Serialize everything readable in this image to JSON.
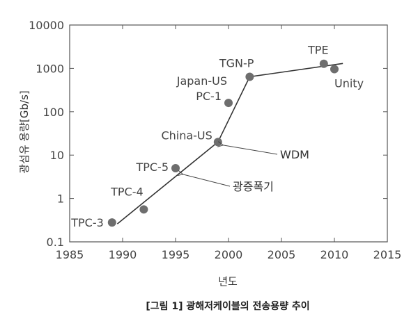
{
  "chart_data": {
    "type": "scatter",
    "caption": "[그림 1] 광해저케이블의 전송용량 추이",
    "xlabel": "년도",
    "ylabel": "광섬유 용량[Gb/s]",
    "xlim": [
      1985,
      2015
    ],
    "ylim": [
      0.1,
      10000
    ],
    "yscale": "log",
    "grid": false,
    "x_ticks": [
      1985,
      1990,
      1995,
      2000,
      2005,
      2010,
      2015
    ],
    "y_ticks": [
      0.1,
      1,
      10,
      100,
      1000,
      10000
    ],
    "y_tick_labels": [
      "0.1",
      "1",
      "10",
      "100",
      "1000",
      "10000"
    ],
    "points": [
      {
        "label": "TPC-3",
        "x": 1989,
        "y": 0.28
      },
      {
        "label": "TPC-4",
        "x": 1992,
        "y": 0.56
      },
      {
        "label": "TPC-5",
        "x": 1995,
        "y": 5
      },
      {
        "label": "China-US",
        "x": 1999,
        "y": 20
      },
      {
        "label": "Japan-US PC-1",
        "x": 2000,
        "y": 160
      },
      {
        "label": "TGN-P",
        "x": 2002,
        "y": 640
      },
      {
        "label": "TPE",
        "x": 2009,
        "y": 1280
      },
      {
        "label": "Unity",
        "x": 2010,
        "y": 960
      }
    ],
    "trend_line": {
      "x": [
        1989.5,
        1999,
        2002,
        2010.8
      ],
      "y": [
        0.26,
        20,
        640,
        1300
      ]
    },
    "annotations": [
      {
        "text": "WDM",
        "target_x": 1999.5,
        "target_y": 17
      },
      {
        "text": "광증폭기",
        "target_x": 1995.7,
        "target_y": 3.6
      }
    ]
  }
}
